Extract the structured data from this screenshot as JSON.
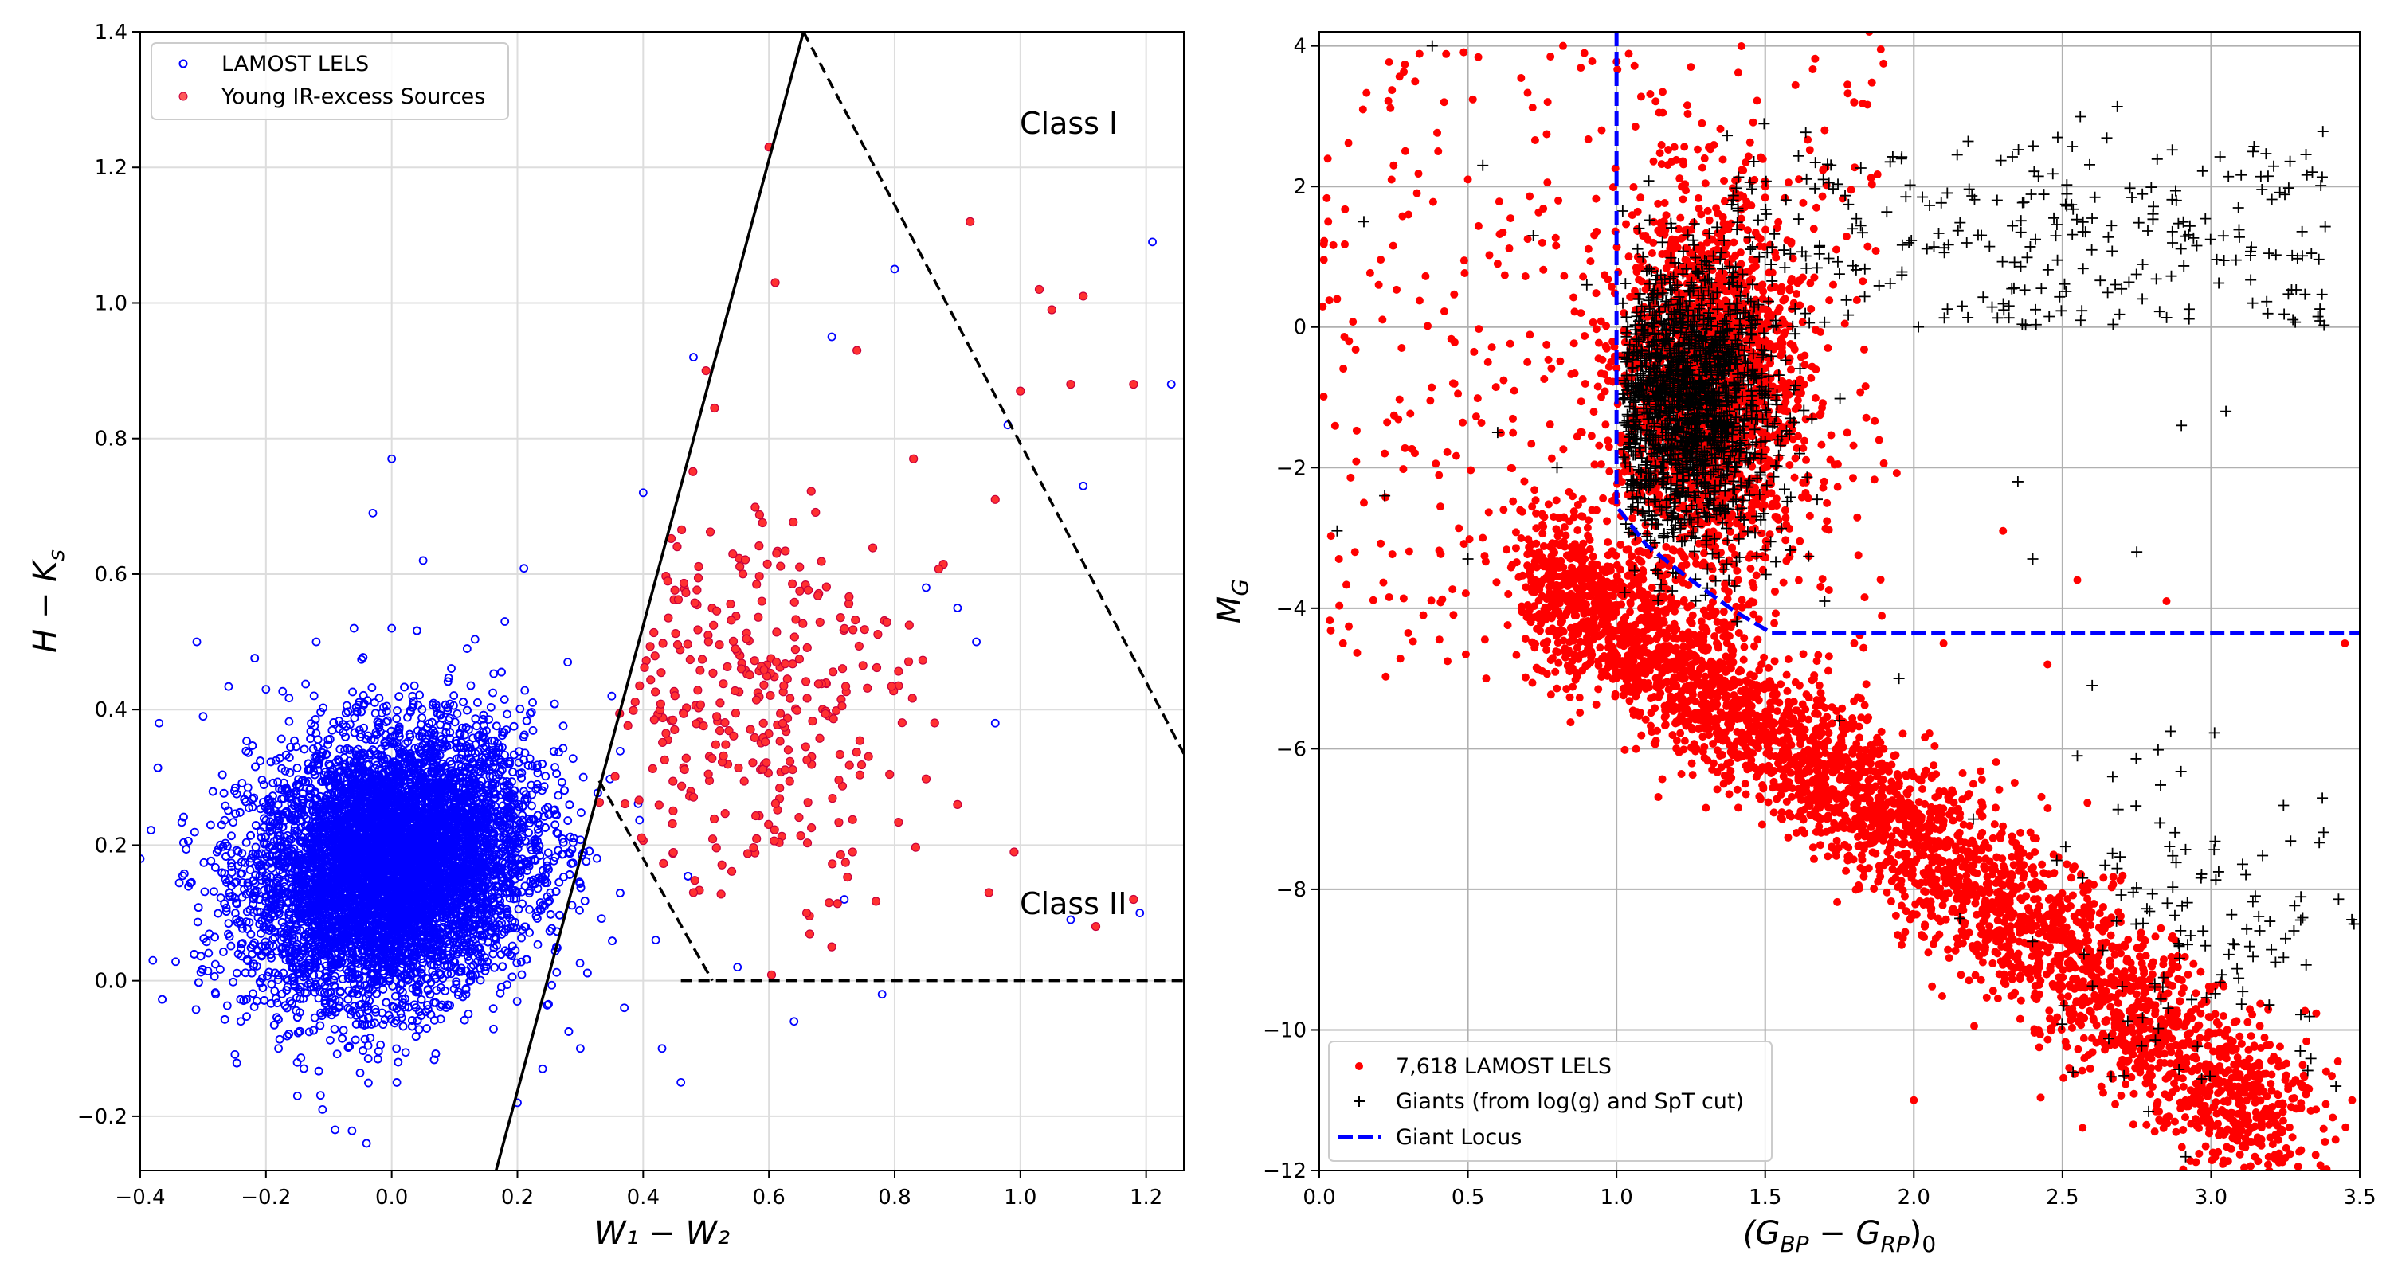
{
  "chart_data": [
    {
      "id": "left",
      "type": "scatter",
      "xlabel": "W₁ − W₂",
      "ylabel": "H − K",
      "ylabel_sub": "s",
      "xlim": [
        -0.4,
        1.26
      ],
      "ylim": [
        -0.28,
        1.4
      ],
      "grid": true,
      "xticks": [
        -0.4,
        -0.2,
        0.0,
        0.2,
        0.4,
        0.6,
        0.8,
        1.0,
        1.2
      ],
      "xtick_labels": [
        "−0.4",
        "−0.2",
        "0.0",
        "0.2",
        "0.4",
        "0.6",
        "0.8",
        "1.0",
        "1.2"
      ],
      "yticks": [
        -0.2,
        0.0,
        0.2,
        0.4,
        0.6,
        0.8,
        1.0,
        1.2,
        1.4
      ],
      "ytick_labels": [
        "−0.2",
        "0.0",
        "0.2",
        "0.4",
        "0.6",
        "0.8",
        "1.0",
        "1.2",
        "1.4"
      ],
      "legend_position": "upper-left",
      "region_labels": [
        {
          "text": "Class I",
          "x": 1.0,
          "y": 1.25
        },
        {
          "text": "Class II",
          "x": 1.0,
          "y": 0.1
        }
      ],
      "series": [
        {
          "name": "LAMOST LELS",
          "marker": "open-circle",
          "color": "#0000ff",
          "cluster": {
            "n": 9000,
            "cx": 0.0,
            "cy": 0.17,
            "sx": 0.11,
            "sy": 0.095
          },
          "points": [
            [
              -0.4,
              0.18
            ],
            [
              -0.38,
              0.03
            ],
            [
              -0.37,
              0.38
            ],
            [
              -0.31,
              0.5
            ],
            [
              -0.3,
              0.39
            ],
            [
              -0.28,
              -0.02
            ],
            [
              -0.25,
              0.28
            ],
            [
              -0.24,
              -0.06
            ],
            [
              -0.2,
              0.43
            ],
            [
              -0.18,
              -0.1
            ],
            [
              -0.15,
              -0.17
            ],
            [
              -0.12,
              0.5
            ],
            [
              -0.11,
              -0.19
            ],
            [
              -0.09,
              -0.22
            ],
            [
              -0.06,
              0.52
            ],
            [
              -0.04,
              -0.24
            ],
            [
              -0.03,
              0.69
            ],
            [
              0.0,
              0.77
            ],
            [
              0.0,
              0.52
            ],
            [
              0.05,
              0.62
            ],
            [
              0.12,
              0.49
            ],
            [
              0.18,
              0.53
            ],
            [
              0.2,
              -0.18
            ],
            [
              0.24,
              -0.13
            ],
            [
              0.28,
              0.47
            ],
            [
              0.3,
              -0.1
            ],
            [
              0.35,
              0.42
            ],
            [
              0.37,
              -0.04
            ],
            [
              0.4,
              0.72
            ],
            [
              0.42,
              0.06
            ],
            [
              0.43,
              -0.1
            ],
            [
              0.46,
              -0.15
            ],
            [
              0.48,
              0.92
            ],
            [
              0.55,
              0.02
            ],
            [
              0.64,
              -0.06
            ],
            [
              0.7,
              0.95
            ],
            [
              0.72,
              0.12
            ],
            [
              0.78,
              -0.02
            ],
            [
              0.8,
              1.05
            ],
            [
              0.85,
              0.58
            ],
            [
              0.9,
              0.55
            ],
            [
              0.93,
              0.5
            ],
            [
              0.96,
              0.38
            ],
            [
              0.98,
              0.82
            ],
            [
              1.08,
              0.09
            ],
            [
              1.1,
              0.73
            ],
            [
              1.19,
              0.1
            ],
            [
              1.21,
              1.09
            ],
            [
              1.24,
              0.88
            ]
          ]
        },
        {
          "name": "Young IR-excess Sources",
          "marker": "filled-circle",
          "color": "#ff3030",
          "edge": "#c8003c",
          "cluster": {
            "n": 330,
            "cx": 0.58,
            "cy": 0.42,
            "sx": 0.12,
            "sy": 0.14
          },
          "points": [
            [
              0.6,
              1.23
            ],
            [
              0.61,
              1.03
            ],
            [
              0.92,
              1.12
            ],
            [
              1.03,
              1.02
            ],
            [
              1.05,
              0.99
            ],
            [
              1.1,
              1.01
            ],
            [
              1.0,
              0.87
            ],
            [
              0.96,
              0.71
            ],
            [
              1.08,
              0.88
            ],
            [
              1.18,
              0.88
            ],
            [
              1.18,
              0.12
            ],
            [
              1.12,
              0.08
            ],
            [
              0.9,
              0.26
            ],
            [
              0.95,
              0.13
            ],
            [
              0.99,
              0.19
            ],
            [
              0.74,
              0.93
            ],
            [
              0.83,
              0.77
            ],
            [
              0.5,
              0.9
            ],
            [
              0.7,
              0.05
            ],
            [
              0.66,
              0.1
            ],
            [
              0.48,
              0.13
            ]
          ]
        }
      ],
      "boundaries": [
        {
          "style": "solid",
          "color": "#000000",
          "points": [
            [
              0.166,
              -0.28
            ],
            [
              0.655,
              1.4
            ]
          ]
        },
        {
          "style": "dashed",
          "color": "#000000",
          "points": [
            [
              0.655,
              1.4
            ],
            [
              1.26,
              0.335
            ]
          ]
        },
        {
          "style": "dashed",
          "color": "#000000",
          "points": [
            [
              0.33,
              0.295
            ],
            [
              0.51,
              0.0
            ]
          ]
        },
        {
          "style": "dashed",
          "color": "#000000",
          "points": [
            [
              0.46,
              0.0
            ],
            [
              1.26,
              0.0
            ]
          ]
        }
      ]
    },
    {
      "id": "right",
      "type": "scatter",
      "xlabel": "(G",
      "xlabel_sub1": "BP",
      "xlabel_mid": " − G",
      "xlabel_sub2": "RP",
      "xlabel_end": ")",
      "xlabel_sub3": "0",
      "ylabel": "M",
      "ylabel_sub": "G",
      "xlim": [
        0.0,
        3.5
      ],
      "ylim": [
        -12,
        4.2
      ],
      "y_inverted": true,
      "grid": true,
      "xticks": [
        0.0,
        0.5,
        1.0,
        1.5,
        2.0,
        2.5,
        3.0,
        3.5
      ],
      "xtick_labels": [
        "0.0",
        "0.5",
        "1.0",
        "1.5",
        "2.0",
        "2.5",
        "3.0",
        "3.5"
      ],
      "yticks": [
        4,
        2,
        0,
        -2,
        -4,
        -6,
        -8,
        -10,
        -12
      ],
      "ytick_labels": [
        "4",
        "2",
        "0",
        "−2",
        "−4",
        "−6",
        "−8",
        "−10",
        "−12"
      ],
      "legend_position": "lower-left",
      "series": [
        {
          "name": "7,618 LAMOST LELS",
          "marker": "filled-circle",
          "color": "#ff0000",
          "count_label": 7618,
          "sequence": {
            "n": 3600,
            "x0": 0.75,
            "y0": -3.6,
            "x1": 3.25,
            "y1": -11.6,
            "sx": 0.07,
            "sy": 0.55
          },
          "clump": {
            "n": 2000,
            "cx": 1.3,
            "cy": -0.9,
            "sx": 0.15,
            "sy": 1.3
          },
          "points": [
            [
              0.03,
              1.5
            ],
            [
              0.06,
              0.4
            ],
            [
              0.1,
              -0.2
            ],
            [
              0.12,
              -3.2
            ],
            [
              0.15,
              -2.5
            ],
            [
              0.2,
              0.6
            ],
            [
              0.22,
              -1.8
            ],
            [
              0.25,
              2.3
            ],
            [
              0.3,
              1.6
            ],
            [
              0.35,
              -4.1
            ],
            [
              0.4,
              2.5
            ],
            [
              0.42,
              3.2
            ],
            [
              0.45,
              -0.8
            ],
            [
              0.5,
              2.1
            ],
            [
              0.55,
              -3.0
            ],
            [
              0.6,
              0.9
            ],
            [
              0.62,
              -2.6
            ],
            [
              0.7,
              -0.5
            ],
            [
              0.75,
              1.2
            ],
            [
              0.82,
              4.0
            ],
            [
              0.88,
              0.2
            ],
            [
              0.95,
              2.8
            ],
            [
              1.25,
              3.7
            ],
            [
              1.5,
              2.0
            ],
            [
              1.7,
              2.8
            ],
            [
              1.85,
              4.2
            ],
            [
              2.0,
              -11.0
            ],
            [
              2.1,
              -4.5
            ],
            [
              2.2,
              -6.5
            ],
            [
              2.3,
              -2.9
            ],
            [
              2.45,
              -4.8
            ],
            [
              2.55,
              -3.6
            ],
            [
              2.85,
              -3.9
            ],
            [
              3.45,
              -4.5
            ]
          ]
        },
        {
          "name": "Giants (from log(g) and SpT cut)",
          "marker": "plus",
          "color": "#000000",
          "clump": {
            "n": 1500,
            "cx": 1.25,
            "cy": -1.1,
            "sx": 0.14,
            "sy": 1.0
          },
          "branch": {
            "n": 280,
            "x0": 1.4,
            "x1": 3.4,
            "ymin": 0.0,
            "ymax": 3.2
          },
          "lower_group": {
            "n": 130,
            "cx": 2.95,
            "cy": -8.6,
            "sx": 0.28,
            "sy": 1.1
          },
          "points": [
            [
              0.06,
              -2.9
            ],
            [
              0.15,
              1.5
            ],
            [
              0.22,
              -2.4
            ],
            [
              0.38,
              4.0
            ],
            [
              0.5,
              -3.3
            ],
            [
              0.55,
              2.3
            ],
            [
              0.6,
              -1.5
            ],
            [
              0.72,
              1.3
            ],
            [
              0.8,
              -2.0
            ],
            [
              0.9,
              0.6
            ],
            [
              1.7,
              -3.9
            ],
            [
              1.75,
              -5.6
            ],
            [
              1.95,
              -5.0
            ],
            [
              2.2,
              -7.0
            ],
            [
              2.35,
              -2.2
            ],
            [
              2.4,
              -3.3
            ],
            [
              2.55,
              -6.1
            ],
            [
              2.6,
              -5.1
            ],
            [
              2.75,
              -3.2
            ],
            [
              2.9,
              -1.4
            ],
            [
              3.05,
              -1.2
            ],
            [
              3.3,
              -10.3
            ],
            [
              3.42,
              -10.8
            ]
          ]
        },
        {
          "name": "Giant Locus",
          "marker": "dashed-line",
          "color": "#0000ff",
          "points": [
            [
              1.0,
              4.2
            ],
            [
              1.0,
              -2.55
            ],
            [
              1.1,
              -3.1
            ],
            [
              1.25,
              -3.6
            ],
            [
              1.4,
              -4.05
            ],
            [
              1.52,
              -4.35
            ],
            [
              3.5,
              -4.35
            ]
          ]
        }
      ]
    }
  ]
}
